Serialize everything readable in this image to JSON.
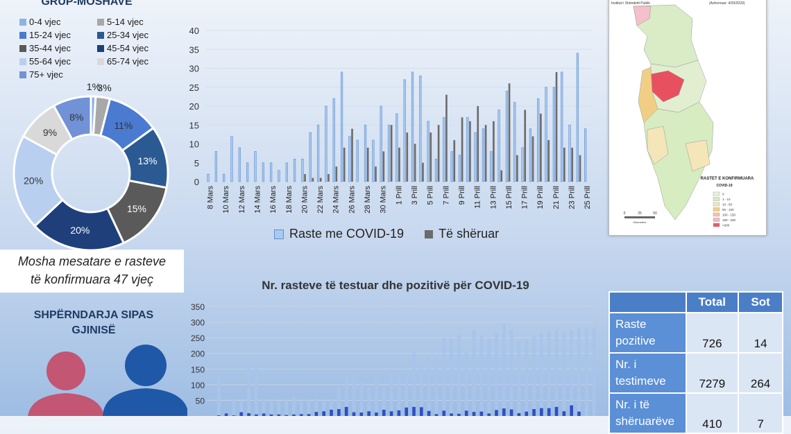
{
  "age_section": {
    "title": "GRUP-MOSHAVE",
    "legend": [
      "0-4 vjec",
      "5-14 vjec",
      "15-24 vjec",
      "25-34 vjec",
      "35-44 vjec",
      "45-54 vjec",
      "55-64 vjec",
      "65-74 vjec",
      "75+ vjec"
    ],
    "colors": [
      "#8fb2e3",
      "#a8a8a8",
      "#4a7bd0",
      "#2b5a92",
      "#5a5a5a",
      "#1f3f7a",
      "#b8cff0",
      "#d9d9d9",
      "#7192d6"
    ]
  },
  "mean_age_note": {
    "line1": "Mosha mesatare e rasteve",
    "line2": "të konfirmuara 47 vjeç"
  },
  "gender_section": {
    "title_line1": "SHPËRNDARJA SIPAS",
    "title_line2": "GJINISË"
  },
  "chart_data": [
    {
      "type": "pie",
      "categories": [
        "0-4 vjec",
        "5-14 vjec",
        "15-24 vjec",
        "25-34 vjec",
        "35-44 vjec",
        "45-54 vjec",
        "55-64 vjec",
        "65-74 vjec",
        "75+ vjec"
      ],
      "values": [
        1,
        3,
        11,
        13,
        15,
        20,
        20,
        9,
        8
      ],
      "labels": [
        "1%",
        "3%",
        "11%",
        "13%",
        "15%",
        "20%",
        "20%",
        "9%",
        "8%"
      ]
    },
    {
      "type": "bar",
      "categories": [
        "8 Mars",
        "9 Mars",
        "10 Mars",
        "11 Mars",
        "12 Mars",
        "13 Mars",
        "14 Mars",
        "15 Mars",
        "16 Mars",
        "17 Mars",
        "18 Mars",
        "19 Mars",
        "20 Mars",
        "21 Mars",
        "22 Mars",
        "23 Mars",
        "24 Mars",
        "25 Mars",
        "26 Mars",
        "27 Mars",
        "28 Mars",
        "29 Mars",
        "30 Mars",
        "31 Mars",
        "1 Prill",
        "2 Prill",
        "3 Prill",
        "4 Prill",
        "5 Prill",
        "6 Prill",
        "7 Prill",
        "8 Prill",
        "9 Prill",
        "10 Prill",
        "11 Prill",
        "12 Prill",
        "13 Prill",
        "14 Prill",
        "15 Prill",
        "16 Prill",
        "17 Prill",
        "18 Prill",
        "19 Prill",
        "20 Prill",
        "21 Prill",
        "22 Prill",
        "23 Prill",
        "24 Prill",
        "25 Prill"
      ],
      "tick_labels": [
        "8 Mars",
        "10 Mars",
        "12 Mars",
        "14 Mars",
        "16 Mars",
        "18 Mars",
        "20 Mars",
        "22 Mars",
        "24 Mars",
        "26 Mars",
        "28 Mars",
        "30 Mars",
        "1 Prill",
        "3 Prill",
        "5 Prill",
        "7 Prill",
        "9 Prill",
        "11 Prill",
        "13 Prill",
        "15 Prill",
        "17 Prill",
        "19 Prill",
        "21 Prill",
        "23 Prill",
        "25 Prill"
      ],
      "series": [
        {
          "name": "Raste me COVID-19",
          "values": [
            2,
            8,
            2,
            12,
            9,
            5,
            8,
            5,
            5,
            3,
            5,
            6,
            6,
            13,
            15,
            20,
            22,
            29,
            12,
            11,
            15,
            11,
            20,
            15,
            18,
            27,
            29,
            28,
            16,
            6,
            17,
            8,
            7,
            17,
            13,
            14,
            8,
            19,
            24,
            21,
            9,
            14,
            22,
            25,
            25,
            29,
            15,
            34,
            14
          ]
        },
        {
          "name": "Të shëruar",
          "values": [
            0,
            0,
            0,
            0,
            0,
            0,
            0,
            0,
            0,
            0,
            0,
            0,
            2,
            1,
            1,
            2,
            4,
            9,
            14,
            0,
            9,
            4,
            8,
            15,
            9,
            13,
            10,
            5,
            13,
            15,
            23,
            11,
            17,
            16,
            20,
            15,
            16,
            3,
            26,
            7,
            19,
            12,
            18,
            11,
            29,
            9,
            9,
            7,
            0
          ]
        }
      ],
      "ylim": [
        0,
        40
      ],
      "yticks": [
        0,
        5,
        10,
        15,
        20,
        25,
        30,
        35,
        40
      ],
      "colors": [
        "#a9c9ef",
        "#6b6b6b"
      ]
    },
    {
      "type": "bar",
      "title": "Nr. rasteve të testuar dhe pozitivë për COVID-19",
      "series": [
        {
          "values": [
            120,
            0,
            55,
            50,
            160,
            165,
            55,
            45,
            48,
            50,
            63,
            48,
            50,
            55,
            50,
            55,
            95,
            120,
            130,
            110,
            90,
            120,
            88,
            150,
            140,
            120,
            210,
            170,
            190,
            188,
            250,
            245,
            260,
            205,
            275,
            255,
            245,
            265,
            292,
            275,
            240,
            245,
            255,
            265,
            270,
            275,
            268,
            272,
            278,
            280,
            278
          ]
        },
        {
          "values": [
            2,
            8,
            2,
            12,
            9,
            5,
            8,
            5,
            5,
            3,
            5,
            6,
            6,
            13,
            15,
            20,
            22,
            29,
            12,
            11,
            15,
            11,
            20,
            15,
            18,
            27,
            29,
            28,
            16,
            6,
            17,
            8,
            7,
            17,
            13,
            14,
            8,
            19,
            24,
            21,
            9,
            14,
            22,
            25,
            25,
            29,
            15,
            34,
            14,
            0,
            0
          ]
        }
      ],
      "ylim": [
        0,
        350
      ],
      "yticks": [
        50,
        100,
        150,
        200,
        250,
        300,
        350
      ],
      "colors": [
        "#a9c4ea",
        "#2e4fc4"
      ]
    }
  ],
  "map": {
    "header": "Instituti i Shëndetit Publik",
    "subtitle": "(Azhornuar: 4/26/2020)",
    "legend_title": "RASTET E KONFIRMUARA",
    "legend_sub": "COVID-19",
    "legend_items": [
      "0",
      "1 - 10",
      "10 - 50",
      "50 - 100",
      "100 - 150",
      "150 - 200",
      ">200"
    ],
    "legend_colors": [
      "#e8f3dd",
      "#d7ecc0",
      "#f4e6b8",
      "#f0cf85",
      "#f5c4a8",
      "#f3b8c2",
      "#e85a6a"
    ],
    "scale_labels": [
      "0",
      "25",
      "50"
    ],
    "scale_unit": "Kilometers"
  },
  "stats_table": {
    "headers": [
      "",
      "Total",
      "Sot"
    ],
    "rows": [
      {
        "label_1": "Raste",
        "label_2": "pozitive",
        "total": "726",
        "today": "14"
      },
      {
        "label_1": "Nr. i",
        "label_2": "testimeve",
        "total": "7279",
        "today": "264"
      },
      {
        "label_1": "Nr. i të",
        "label_2": "shëruarëve",
        "total": "410",
        "today": "7"
      }
    ]
  }
}
